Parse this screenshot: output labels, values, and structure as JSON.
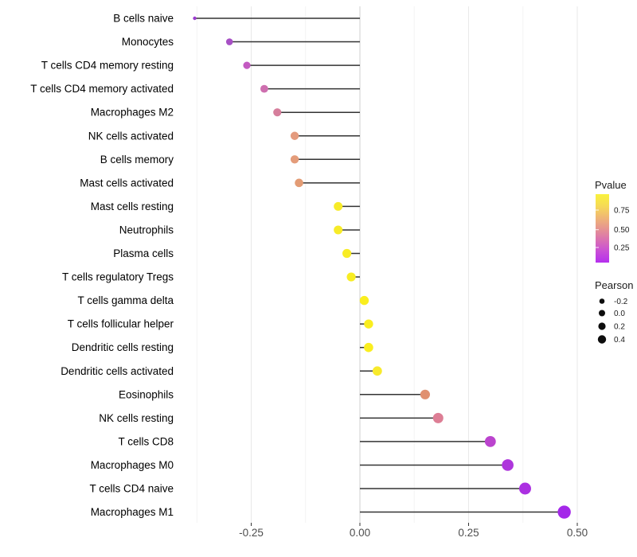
{
  "chart_data": {
    "type": "scatter",
    "variant": "lollipop",
    "title": "",
    "xlabel": "",
    "ylabel": "",
    "xlim": [
      -0.4,
      0.53
    ],
    "grid": true,
    "x_ticks": [
      {
        "value": -0.25,
        "label": "-0.25"
      },
      {
        "value": 0.0,
        "label": "0.00"
      },
      {
        "value": 0.25,
        "label": "0.25"
      },
      {
        "value": 0.5,
        "label": "0.50"
      }
    ],
    "x_minor_gridlines": [
      -0.375,
      -0.125,
      0.125,
      0.375
    ],
    "zero_line": 0,
    "points": [
      {
        "category": "B cells naive",
        "pearson": -0.38,
        "color": "#9B3BCE",
        "radius_px": 2.2
      },
      {
        "category": "Monocytes",
        "pearson": -0.3,
        "color": "#A750C5",
        "radius_px": 4.3
      },
      {
        "category": "T cells CD4 memory resting",
        "pearson": -0.26,
        "color": "#C35AC1",
        "radius_px": 4.6
      },
      {
        "category": "T cells CD4 memory activated",
        "pearson": -0.22,
        "color": "#CE6FAF",
        "radius_px": 4.9
      },
      {
        "category": "Macrophages M2",
        "pearson": -0.19,
        "color": "#D67E9C",
        "radius_px": 5.1
      },
      {
        "category": "NK cells activated",
        "pearson": -0.15,
        "color": "#E49B7E",
        "radius_px": 5.2
      },
      {
        "category": "B cells memory",
        "pearson": -0.15,
        "color": "#E49C7A",
        "radius_px": 5.2
      },
      {
        "category": "Mast cells activated",
        "pearson": -0.14,
        "color": "#E39C75",
        "radius_px": 5.3
      },
      {
        "category": "Mast cells resting",
        "pearson": -0.05,
        "color": "#F7EB28",
        "radius_px": 5.5
      },
      {
        "category": "Neutrophils",
        "pearson": -0.05,
        "color": "#F7EB28",
        "radius_px": 5.5
      },
      {
        "category": "Plasma cells",
        "pearson": -0.03,
        "color": "#F8EC25",
        "radius_px": 5.6
      },
      {
        "category": "T cells regulatory  Tregs",
        "pearson": -0.02,
        "color": "#F8ED23",
        "radius_px": 5.6
      },
      {
        "category": "T cells gamma delta",
        "pearson": 0.01,
        "color": "#FAEE1F",
        "radius_px": 5.7
      },
      {
        "category": "T cells follicular helper",
        "pearson": 0.02,
        "color": "#FAEE1F",
        "radius_px": 5.7
      },
      {
        "category": "Dendritic cells resting",
        "pearson": 0.02,
        "color": "#FAEE1F",
        "radius_px": 5.8
      },
      {
        "category": "Dendritic cells activated",
        "pearson": 0.04,
        "color": "#F8EA2C",
        "radius_px": 5.9
      },
      {
        "category": "Eosinophils",
        "pearson": 0.15,
        "color": "#E09070",
        "radius_px": 6.1
      },
      {
        "category": "NK cells resting",
        "pearson": 0.18,
        "color": "#DD7E95",
        "radius_px": 6.5
      },
      {
        "category": "T cells CD8",
        "pearson": 0.3,
        "color": "#BB44CE",
        "radius_px": 6.9
      },
      {
        "category": "Macrophages M0",
        "pearson": 0.34,
        "color": "#AE36DC",
        "radius_px": 7.3
      },
      {
        "category": "T cells CD4 naive",
        "pearson": 0.38,
        "color": "#AB30E1",
        "radius_px": 7.5
      },
      {
        "category": "Macrophages M1",
        "pearson": 0.47,
        "color": "#A428E9",
        "radius_px": 8.2
      }
    ],
    "legend_pvalue": {
      "title": "Pvalue",
      "tick_labels": [
        "0.75",
        "0.50",
        "0.25"
      ],
      "gradient_top_to_bottom": [
        "#F9F23D",
        "#F6DB55",
        "#F0B873",
        "#E69590",
        "#DA71B2",
        "#C94FD6",
        "#B52FEE"
      ]
    },
    "legend_pearson": {
      "title": "Pearson",
      "entries": [
        {
          "label": "-0.2",
          "radius_px": 3.3
        },
        {
          "label": "0.0",
          "radius_px": 4.0
        },
        {
          "label": "0.2",
          "radius_px": 4.6
        },
        {
          "label": "0.4",
          "radius_px": 5.2
        }
      ]
    }
  },
  "colors": {
    "background": "#FFFFFF",
    "stem": "#333333",
    "grid_major": "#E9E9E9",
    "grid_minor": "#F4F4F4",
    "zero_line": "#CFCFCF",
    "tick_mark": "#333333",
    "axis_text": "#4D4D4D",
    "category_text": "#000000",
    "legend_text": "#1A1A1A",
    "legend_dot": "#0D0D0D"
  }
}
